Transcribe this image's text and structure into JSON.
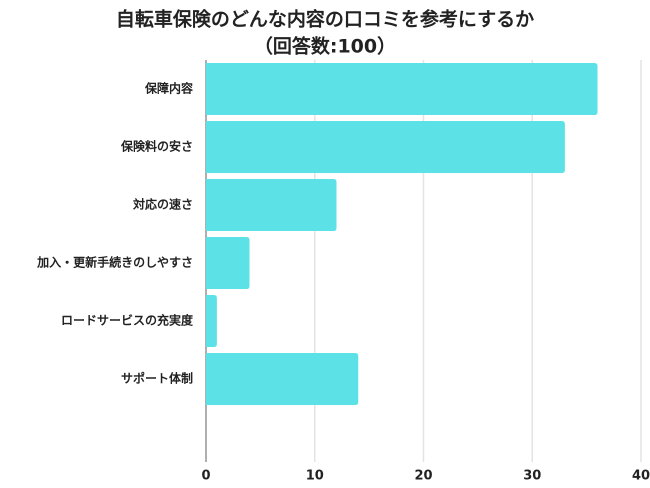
{
  "chart_data": {
    "type": "bar",
    "orientation": "horizontal",
    "title": "自転車保険のどんな内容の口コミを参考にするか",
    "subtitle": "（回答数:100）",
    "categories": [
      "保障内容",
      "保険料の安さ",
      "対応の速さ",
      "加入・更新手続きのしやすさ",
      "ロードサービスの充実度",
      "サポート体制"
    ],
    "values": [
      36,
      33,
      12,
      4,
      1,
      14
    ],
    "color": "#5ce1e6",
    "xlim": [
      0,
      40
    ],
    "xticks": [
      0,
      10,
      20,
      30,
      40
    ],
    "grid": true
  }
}
